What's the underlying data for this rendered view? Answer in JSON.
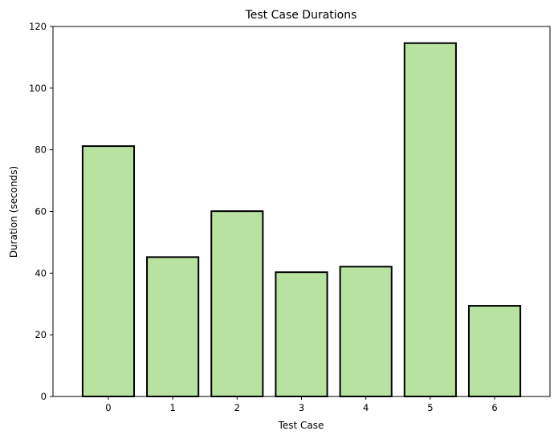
{
  "chart_data": {
    "type": "bar",
    "title": "Test Case Durations",
    "xlabel": "Test Case",
    "ylabel": "Duration (seconds)",
    "categories": [
      "0",
      "1",
      "2",
      "3",
      "4",
      "5",
      "6"
    ],
    "values": [
      81.2,
      45.2,
      60.1,
      40.3,
      42.1,
      114.6,
      29.4
    ],
    "ylim": [
      0,
      120
    ],
    "yticks": [
      0,
      20,
      40,
      60,
      80,
      100,
      120
    ],
    "grid": false,
    "legend": "none",
    "colors": {
      "bar_fill": "#b7e2a0",
      "bar_edge": "#000000",
      "axis": "#000000"
    }
  }
}
